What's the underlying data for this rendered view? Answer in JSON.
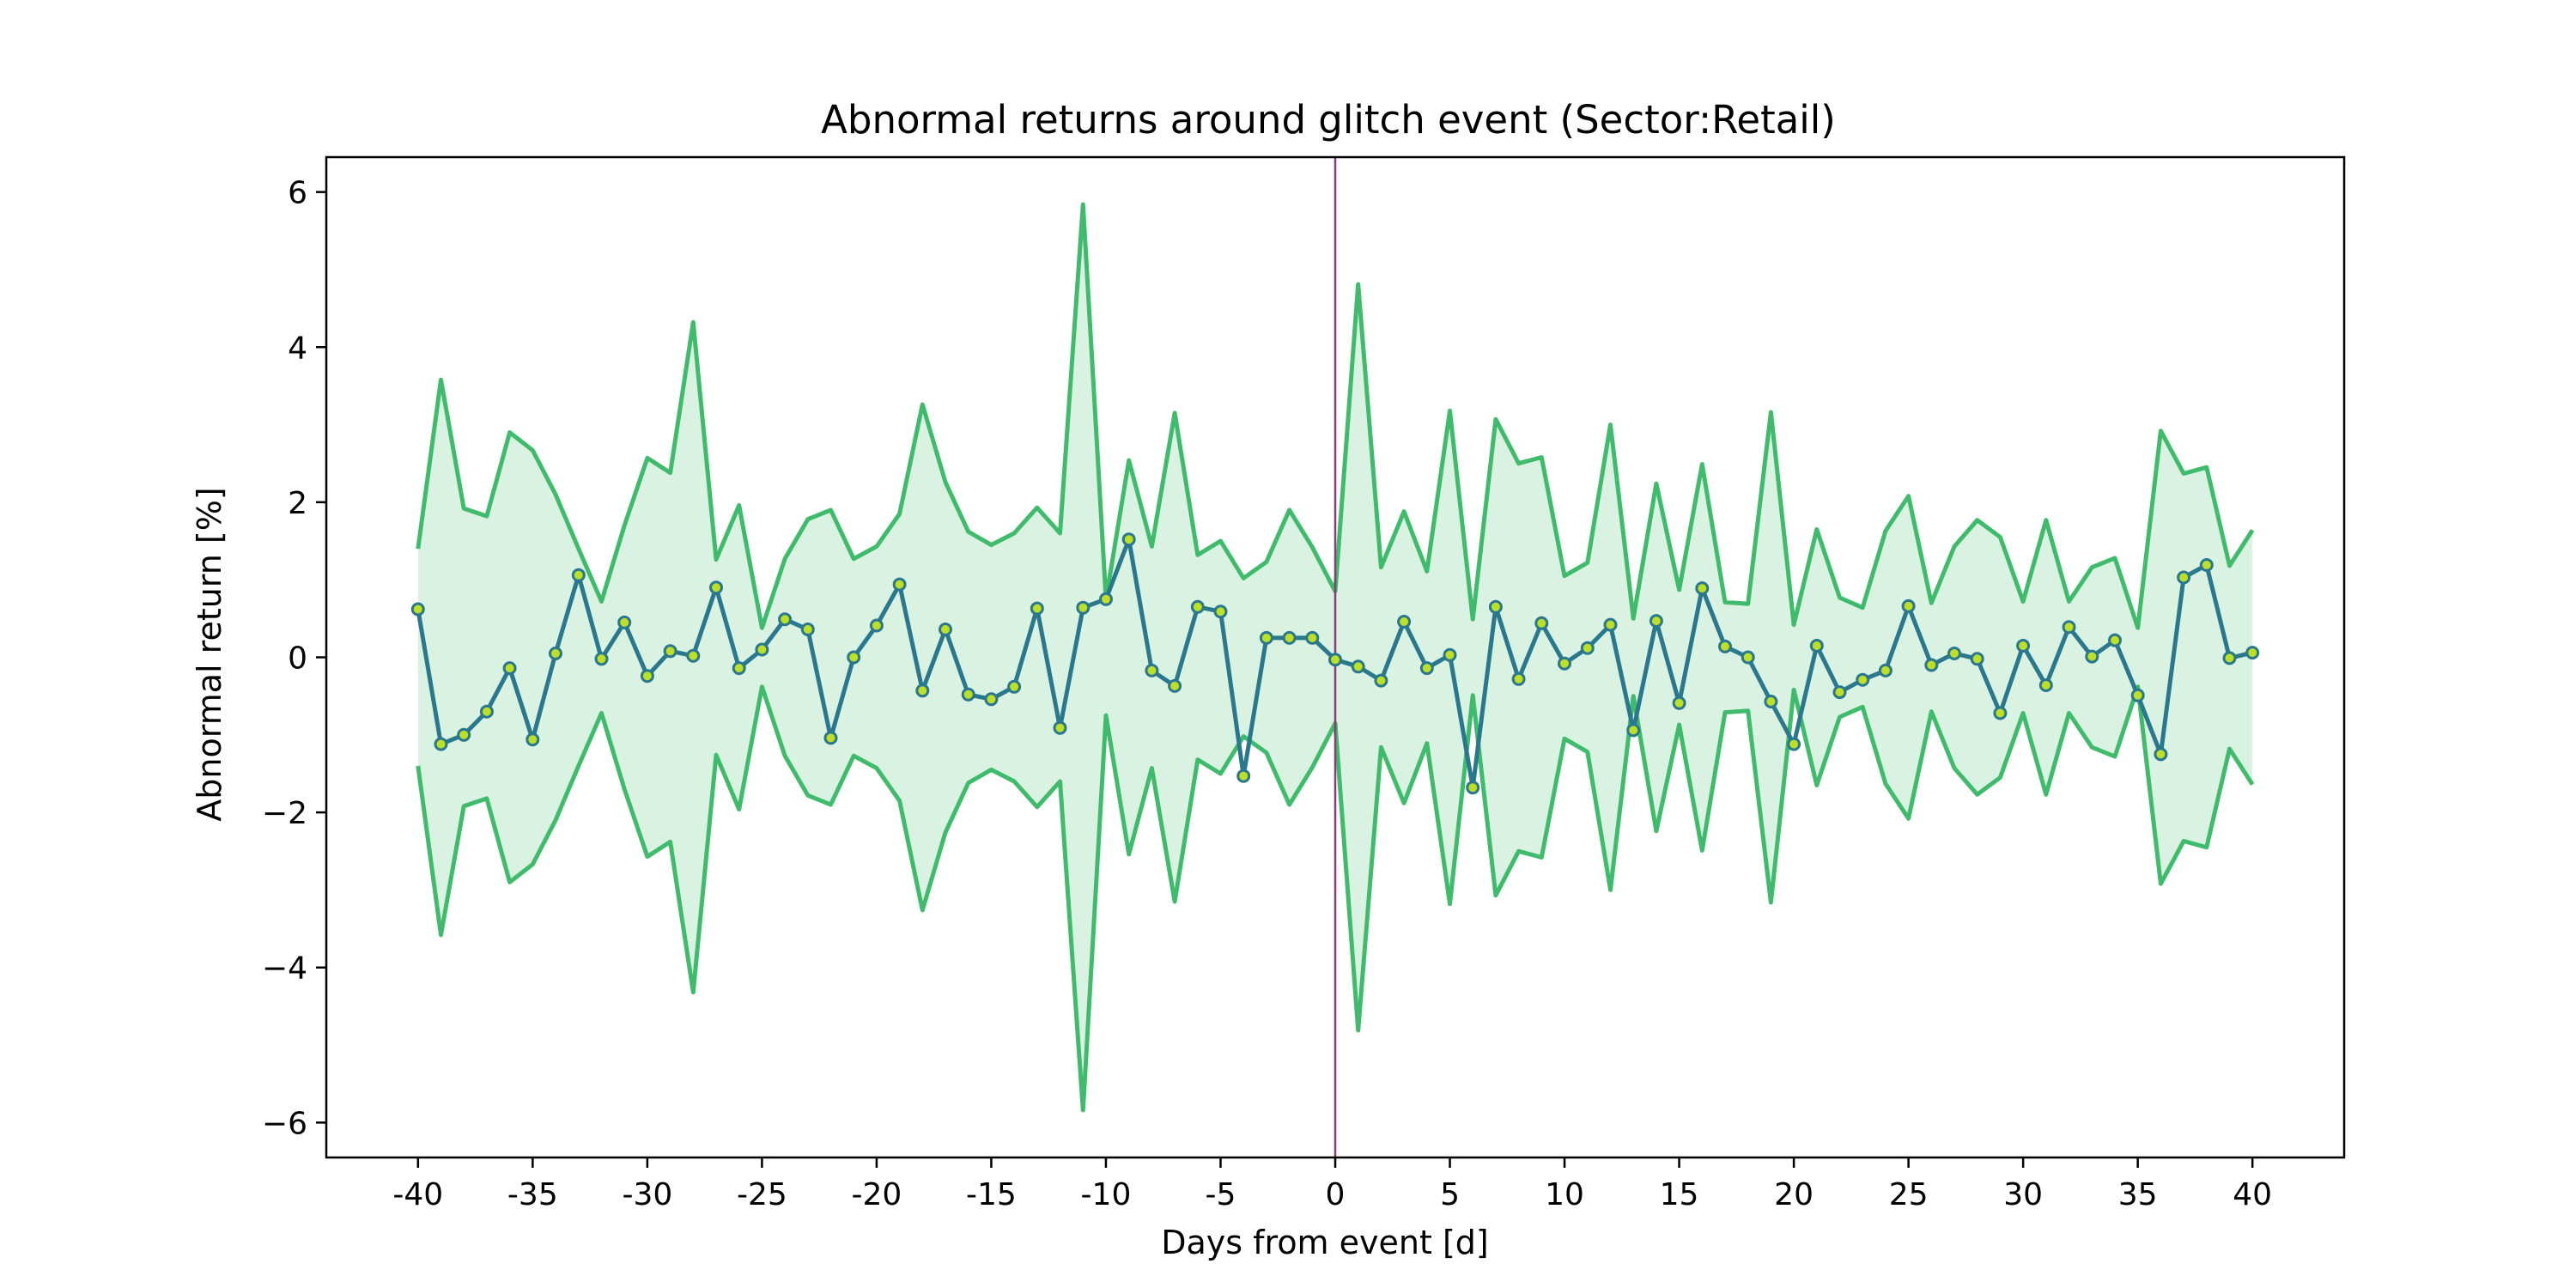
{
  "chart_data": {
    "type": "line",
    "title": "Abnormal returns around glitch event (Sector:Retail)",
    "xlabel": "Days from event [d]",
    "ylabel": "Abnormal return [%]",
    "xlim": [
      -44,
      44
    ],
    "ylim": [
      -6.45,
      6.45
    ],
    "x_ticks": [
      -40,
      -35,
      -30,
      -25,
      -20,
      -15,
      -10,
      -5,
      0,
      5,
      10,
      15,
      20,
      25,
      30,
      35,
      40
    ],
    "y_ticks": [
      -6,
      -4,
      -2,
      0,
      2,
      4,
      6
    ],
    "y_tick_labels": [
      "−6",
      "−4",
      "−2",
      "0",
      "2",
      "4",
      "6"
    ],
    "grid": false,
    "event_day": 0,
    "colors": {
      "line": "#2a788e",
      "marker_fill": "#bddf26",
      "band_edge": "#3fbc6b",
      "band_fill": "#d9f2e1",
      "event_line": "#8b3a7a",
      "axis": "#000000"
    },
    "x": [
      -40,
      -39,
      -38,
      -37,
      -36,
      -35,
      -34,
      -33,
      -32,
      -31,
      -30,
      -29,
      -28,
      -27,
      -26,
      -25,
      -24,
      -23,
      -22,
      -21,
      -20,
      -19,
      -18,
      -17,
      -16,
      -15,
      -14,
      -13,
      -12,
      -11,
      -10,
      -9,
      -8,
      -7,
      -6,
      -5,
      -4,
      -3,
      -2,
      -1,
      0,
      1,
      2,
      3,
      4,
      5,
      6,
      7,
      8,
      9,
      10,
      11,
      12,
      13,
      14,
      15,
      16,
      17,
      18,
      19,
      20,
      21,
      22,
      23,
      24,
      25,
      26,
      27,
      28,
      29,
      30,
      31,
      32,
      33,
      34,
      35,
      36,
      37,
      38,
      39,
      40
    ],
    "series": [
      {
        "values": [
          0.62,
          -1.12,
          -1.0,
          -0.7,
          -0.14,
          -1.06,
          0.05,
          1.06,
          -0.02,
          0.45,
          -0.24,
          0.08,
          0.02,
          0.9,
          -0.14,
          0.1,
          0.49,
          0.36,
          -1.04,
          0.0,
          0.41,
          0.94,
          -0.43,
          0.36,
          -0.48,
          -0.54,
          -0.38,
          0.63,
          -0.91,
          0.64,
          0.75,
          1.52,
          -0.17,
          -0.37,
          0.65,
          0.59,
          -1.53,
          0.25,
          0.25,
          0.25,
          -0.03,
          -0.12,
          -0.3,
          0.46,
          -0.14,
          0.03,
          -1.68,
          0.65,
          -0.28,
          0.44,
          -0.08,
          0.12,
          0.42,
          -0.94,
          0.47,
          -0.59,
          0.89,
          0.14,
          0.0,
          -0.57,
          -1.12,
          0.15,
          -0.45,
          -0.29,
          -0.17,
          0.66,
          -0.1,
          0.05,
          -0.02,
          -0.72,
          0.15,
          -0.36,
          0.39,
          0.01,
          0.22,
          -0.49,
          -1.25,
          1.03,
          1.19,
          -0.01,
          0.06
        ]
      }
    ],
    "band": {
      "upper": [
        1.4,
        3.58,
        1.92,
        1.82,
        2.9,
        2.67,
        2.1,
        1.4,
        0.72,
        1.7,
        2.57,
        2.38,
        4.32,
        1.26,
        1.96,
        0.38,
        1.27,
        1.78,
        1.9,
        1.27,
        1.43,
        1.85,
        3.26,
        2.26,
        1.62,
        1.45,
        1.6,
        1.93,
        1.6,
        5.84,
        0.75,
        2.54,
        1.43,
        3.15,
        1.32,
        1.5,
        1.02,
        1.23,
        1.9,
        1.42,
        0.85,
        4.81,
        1.16,
        1.88,
        1.11,
        3.18,
        0.49,
        3.07,
        2.5,
        2.58,
        1.05,
        1.22,
        3.0,
        0.5,
        2.24,
        0.87,
        2.49,
        0.71,
        0.69,
        3.16,
        0.42,
        1.65,
        0.77,
        0.64,
        1.63,
        2.08,
        0.7,
        1.43,
        1.77,
        1.55,
        0.72,
        1.77,
        0.72,
        1.16,
        1.28,
        0.38,
        2.92,
        2.37,
        2.45,
        1.18,
        1.64
      ],
      "lower": [
        -1.4,
        -3.58,
        -1.92,
        -1.82,
        -2.9,
        -2.67,
        -2.1,
        -1.4,
        -0.72,
        -1.7,
        -2.57,
        -2.38,
        -4.32,
        -1.26,
        -1.96,
        -0.38,
        -1.27,
        -1.78,
        -1.9,
        -1.27,
        -1.43,
        -1.85,
        -3.26,
        -2.26,
        -1.62,
        -1.45,
        -1.6,
        -1.93,
        -1.6,
        -5.84,
        -0.75,
        -2.54,
        -1.43,
        -3.15,
        -1.32,
        -1.5,
        -1.02,
        -1.23,
        -1.9,
        -1.42,
        -0.85,
        -4.81,
        -1.16,
        -1.88,
        -1.11,
        -3.18,
        -0.49,
        -3.07,
        -2.5,
        -2.58,
        -1.05,
        -1.22,
        -3.0,
        -0.5,
        -2.24,
        -0.87,
        -2.49,
        -0.71,
        -0.69,
        -3.16,
        -0.42,
        -1.65,
        -0.77,
        -0.64,
        -1.63,
        -2.08,
        -0.7,
        -1.43,
        -1.77,
        -1.55,
        -0.72,
        -1.77,
        -0.72,
        -1.16,
        -1.28,
        -0.38,
        -2.92,
        -2.37,
        -2.45,
        -1.18,
        -1.64
      ]
    }
  }
}
